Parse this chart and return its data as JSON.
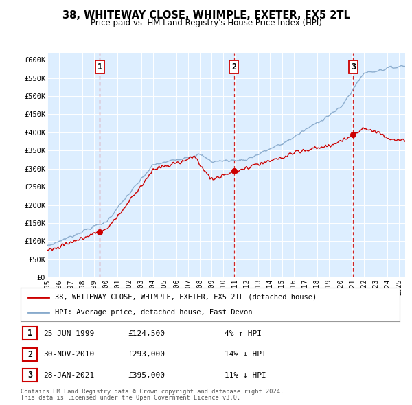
{
  "title": "38, WHITEWAY CLOSE, WHIMPLE, EXETER, EX5 2TL",
  "subtitle": "Price paid vs. HM Land Registry's House Price Index (HPI)",
  "xlim": [
    1995.0,
    2025.5
  ],
  "ylim": [
    0,
    620000
  ],
  "yticks": [
    0,
    50000,
    100000,
    150000,
    200000,
    250000,
    300000,
    350000,
    400000,
    450000,
    500000,
    550000,
    600000
  ],
  "ytick_labels": [
    "£0",
    "£50K",
    "£100K",
    "£150K",
    "£200K",
    "£250K",
    "£300K",
    "£350K",
    "£400K",
    "£450K",
    "£500K",
    "£550K",
    "£600K"
  ],
  "sale_color": "#cc0000",
  "hpi_color": "#88aacc",
  "marker_color": "#cc0000",
  "vline_color": "#cc0000",
  "background_color": "#ddeeff",
  "sale_label": "38, WHITEWAY CLOSE, WHIMPLE, EXETER, EX5 2TL (detached house)",
  "hpi_label": "HPI: Average price, detached house, East Devon",
  "transactions": [
    {
      "num": 1,
      "date": "25-JUN-1999",
      "year": 1999.48,
      "price": 124500,
      "pct": "4%",
      "dir": "↑"
    },
    {
      "num": 2,
      "date": "30-NOV-2010",
      "year": 2010.92,
      "price": 293000,
      "pct": "14%",
      "dir": "↓"
    },
    {
      "num": 3,
      "date": "28-JAN-2021",
      "year": 2021.08,
      "price": 395000,
      "pct": "11%",
      "dir": "↓"
    }
  ],
  "footer1": "Contains HM Land Registry data © Crown copyright and database right 2024.",
  "footer2": "This data is licensed under the Open Government Licence v3.0."
}
